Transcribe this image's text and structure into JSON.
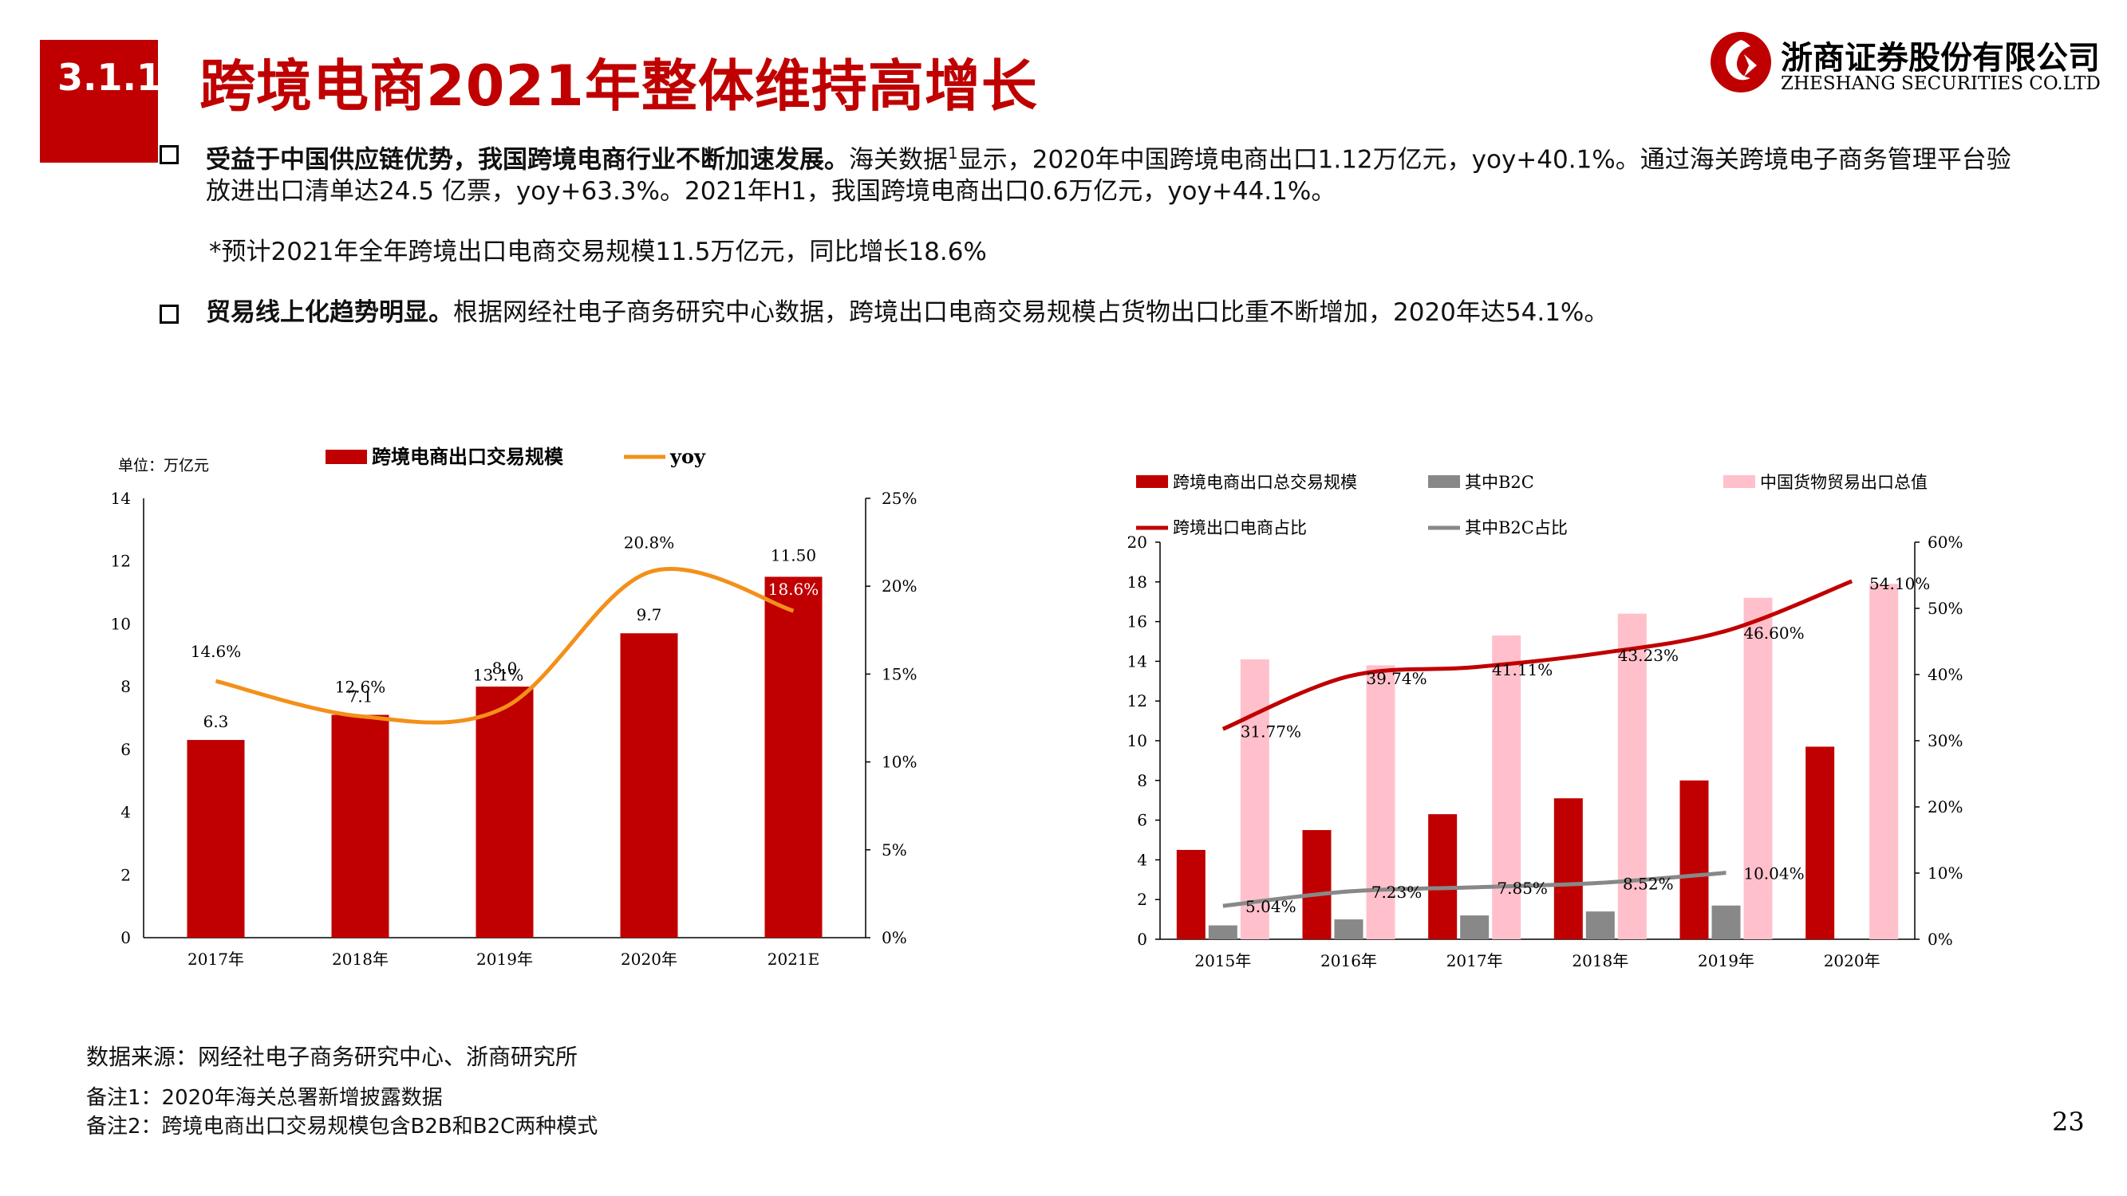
{
  "header": {
    "section": "3.1.1",
    "title": "跨境电商2021年整体维持高增长",
    "logo_cn": "浙商证券股份有限公司",
    "logo_en": "ZHESHANG SECURITIES CO.LTD"
  },
  "bullets": [
    {
      "bold": "受益于中国供应链优势，我国跨境电商行业不断加速发展。",
      "text_a": "海关数据",
      "sup": "1",
      "text_b": "显示，2020年中国跨境电商出口1.12万亿元，yoy+40.1%。通过海关跨境电子商务管理平台验",
      "line2": "放进出口清单达24.5 亿票，yoy+63.3%。2021年H1，我国跨境电商出口0.6万亿元，yoy+44.1%。"
    },
    {
      "bold": "贸易线上化趋势明显。",
      "text": "根据网经社电子商务研究中心数据，跨境出口电商交易规模占货物出口比重不断增加，2020年达54.1%。"
    }
  ],
  "estimate_note": "*预计2021年全年跨境出口电商交易规模11.5万亿元，同比增长18.6%",
  "footer": {
    "source": "数据来源：网经社电子商务研究中心、浙商研究所",
    "note1": "备注1：2020年海关总署新增披露数据",
    "note2": "备注2：跨境电商出口交易规模包含B2B和B2C两种模式"
  },
  "page_number": "23",
  "colors": {
    "brand_red": "#c00000",
    "line_orange": "#f39019",
    "pink": "#ffc0cb",
    "gray": "#888888"
  },
  "chart_data": [
    {
      "type": "bar",
      "unit_label": "单位：万亿元",
      "categories": [
        "2017年",
        "2018年",
        "2019年",
        "2020年",
        "2021E"
      ],
      "series": [
        {
          "name": "跨境电商出口交易规模",
          "type": "bar",
          "axis": "left",
          "values": [
            6.3,
            7.1,
            8.0,
            9.7,
            11.5
          ],
          "labels": [
            "6.3",
            "7.1",
            "8.0",
            "9.7",
            "11.50"
          ]
        },
        {
          "name": "yoy",
          "type": "line",
          "axis": "right",
          "values": [
            14.6,
            12.6,
            13.1,
            20.8,
            18.6
          ],
          "labels": [
            "14.6%",
            "12.6%",
            "13.1%",
            "20.8%",
            "18.6%"
          ]
        }
      ],
      "ylim_left": [
        0,
        14
      ],
      "yticks_left": [
        "0",
        "2",
        "4",
        "6",
        "8",
        "10",
        "12",
        "14"
      ],
      "ylim_right": [
        0,
        25
      ],
      "yticks_right": [
        "0%",
        "5%",
        "10%",
        "15%",
        "20%",
        "25%"
      ],
      "legend": "top"
    },
    {
      "type": "bar",
      "categories": [
        "2015年",
        "2016年",
        "2017年",
        "2018年",
        "2019年",
        "2020年"
      ],
      "series": [
        {
          "name": "跨境电商出口总交易规模",
          "type": "bar",
          "axis": "left",
          "values": [
            4.5,
            5.5,
            6.3,
            7.1,
            8.0,
            9.7
          ]
        },
        {
          "name": "其中B2C",
          "type": "bar",
          "axis": "left",
          "values": [
            0.7,
            1.0,
            1.2,
            1.4,
            1.7,
            null
          ]
        },
        {
          "name": "中国货物贸易出口总值",
          "type": "bar",
          "axis": "left",
          "values": [
            14.1,
            13.8,
            15.3,
            16.4,
            17.2,
            17.9
          ]
        },
        {
          "name": "跨境出口电商占比",
          "type": "line",
          "axis": "right",
          "values": [
            31.77,
            39.74,
            41.11,
            43.23,
            46.6,
            54.1
          ],
          "labels": [
            "31.77%",
            "39.74%",
            "41.11%",
            "43.23%",
            "46.60%",
            "54.10%"
          ]
        },
        {
          "name": "其中B2C占比",
          "type": "line",
          "axis": "right",
          "values": [
            5.04,
            7.23,
            7.85,
            8.52,
            10.04,
            null
          ],
          "labels": [
            "5.04%",
            "7.23%",
            "7.85%",
            "8.52%",
            "10.04%",
            ""
          ]
        }
      ],
      "ylim_left": [
        0,
        20
      ],
      "yticks_left": [
        "0",
        "2",
        "4",
        "6",
        "8",
        "10",
        "12",
        "14",
        "16",
        "18",
        "20"
      ],
      "ylim_right": [
        0,
        60
      ],
      "yticks_right": [
        "0%",
        "10%",
        "20%",
        "30%",
        "40%",
        "50%",
        "60%"
      ],
      "legend": "top"
    }
  ]
}
